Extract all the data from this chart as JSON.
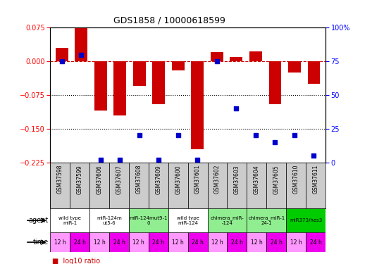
{
  "title": "GDS1858 / 10000618599",
  "samples": [
    "GSM37598",
    "GSM37599",
    "GSM37606",
    "GSM37607",
    "GSM37608",
    "GSM37609",
    "GSM37600",
    "GSM37601",
    "GSM37602",
    "GSM37603",
    "GSM37604",
    "GSM37605",
    "GSM37610",
    "GSM37611"
  ],
  "log10_ratio": [
    0.03,
    0.075,
    -0.11,
    -0.12,
    -0.055,
    -0.095,
    -0.02,
    -0.195,
    0.02,
    0.01,
    0.022,
    -0.095,
    -0.025,
    -0.05
  ],
  "percentile_rank": [
    75,
    80,
    2,
    2,
    20,
    2,
    20,
    2,
    75,
    40,
    20,
    15,
    20,
    5
  ],
  "ylim": [
    -0.225,
    0.075
  ],
  "yticks_left": [
    0.075,
    0.0,
    -0.075,
    -0.15,
    -0.225
  ],
  "yticks_right": [
    100,
    75,
    50,
    25,
    0
  ],
  "agent_groups": [
    {
      "label": "wild type\nmiR-1",
      "cols": [
        0,
        1
      ],
      "color": "#ffffff"
    },
    {
      "label": "miR-124m\nut5-6",
      "cols": [
        2,
        3
      ],
      "color": "#ffffff"
    },
    {
      "label": "miR-124mut9-1\n0",
      "cols": [
        4,
        5
      ],
      "color": "#90ee90"
    },
    {
      "label": "wild type\nmiR-124",
      "cols": [
        6,
        7
      ],
      "color": "#ffffff"
    },
    {
      "label": "chimera_miR-\n-124",
      "cols": [
        8,
        9
      ],
      "color": "#90ee90"
    },
    {
      "label": "chimera_miR-1\n24-1",
      "cols": [
        10,
        11
      ],
      "color": "#90ee90"
    },
    {
      "label": "miR373/hes3",
      "cols": [
        12,
        13
      ],
      "color": "#00cc00"
    }
  ],
  "time_labels": [
    "12 h",
    "24 h",
    "12 h",
    "24 h",
    "12 h",
    "24 h",
    "12 h",
    "24 h",
    "12 h",
    "24 h",
    "12 h",
    "24 h",
    "12 h",
    "24 h"
  ],
  "time_colors_odd": "#ff99ff",
  "time_colors_even": "#ee00ee",
  "bar_color": "#cc0000",
  "scatter_color": "#0000cc",
  "dashed_line_color": "#cc0000",
  "dot_line_color": "#000000",
  "bg_color": "#ffffff",
  "sample_bg_color": "#cccccc",
  "n_samples": 14
}
